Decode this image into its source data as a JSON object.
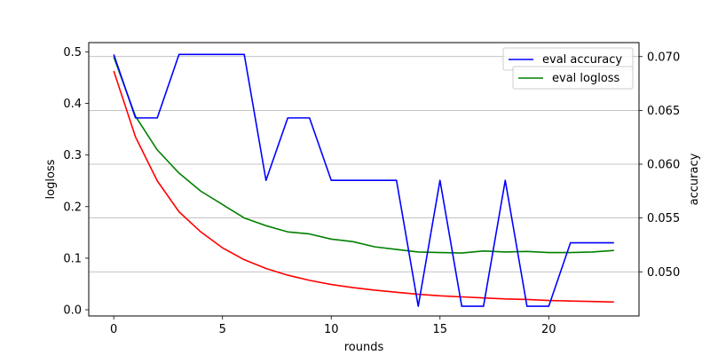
{
  "chart_data": {
    "type": "line",
    "xlabel": "rounds",
    "ylabel_left": "logloss",
    "ylabel_right": "accuracy",
    "x": [
      0,
      1,
      2,
      3,
      4,
      5,
      6,
      7,
      8,
      9,
      10,
      11,
      12,
      13,
      14,
      15,
      16,
      17,
      18,
      19,
      20,
      21,
      22,
      23
    ],
    "xlim": [
      -1.15,
      24.15
    ],
    "ylim_left": [
      -0.012,
      0.518
    ],
    "ylim_right": [
      0.0459,
      0.0713
    ],
    "xticks": [
      0,
      5,
      10,
      15,
      20
    ],
    "yticks_left": [
      0.0,
      0.1,
      0.2,
      0.3,
      0.4,
      0.5
    ],
    "yticks_right": [
      0.05,
      0.055,
      0.06,
      0.065,
      0.07
    ],
    "grid": "horizontal lines at right-axis ticks",
    "legend_position": "top-right",
    "colors": {
      "red": "#ff0000",
      "green": "#008000",
      "blue": "#0000ff",
      "grid": "#b0b0b0"
    },
    "series": [
      {
        "name": "eval accuracy",
        "axis": "right",
        "color": "#0000ff",
        "in_legend": true,
        "values": [
          0.0702,
          0.0643,
          0.0643,
          0.0702,
          0.0702,
          0.0702,
          0.0702,
          0.0585,
          0.0643,
          0.0643,
          0.0585,
          0.0585,
          0.0585,
          0.0585,
          0.0468,
          0.0585,
          0.0468,
          0.0468,
          0.0585,
          0.0468,
          0.0468,
          0.0527,
          0.0527,
          0.0527
        ]
      },
      {
        "name": "eval logloss",
        "axis": "left",
        "color": "#008000",
        "in_legend": true,
        "values": [
          0.49,
          0.375,
          0.31,
          0.265,
          0.23,
          0.204,
          0.178,
          0.163,
          0.151,
          0.147,
          0.137,
          0.132,
          0.122,
          0.117,
          0.112,
          0.111,
          0.11,
          0.114,
          0.112,
          0.113,
          0.111,
          0.111,
          0.112,
          0.115
        ]
      },
      {
        "axis": "left",
        "color": "#ff0000",
        "in_legend": false,
        "values": [
          0.463,
          0.335,
          0.25,
          0.19,
          0.151,
          0.12,
          0.097,
          0.08,
          0.067,
          0.057,
          0.049,
          0.043,
          0.038,
          0.034,
          0.03,
          0.027,
          0.025,
          0.023,
          0.021,
          0.02,
          0.018,
          0.017,
          0.016,
          0.015
        ]
      }
    ]
  }
}
